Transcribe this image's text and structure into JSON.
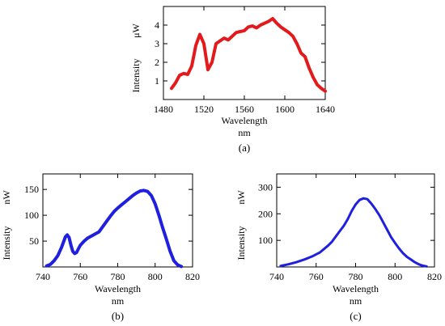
{
  "chart_data": [
    {
      "type": "line",
      "panel_label": "(a)",
      "xlabel": "Wavelength",
      "xunit": "nm",
      "ylabel": "Intensity",
      "yunit": "μW",
      "xlim": [
        1480,
        1640
      ],
      "ylim": [
        0,
        5
      ],
      "xticks": [
        1480,
        1520,
        1560,
        1600,
        1640
      ],
      "yticks": [
        1,
        2,
        3,
        4
      ],
      "grid": false,
      "color": "#e31a1c",
      "x": [
        1488,
        1492,
        1496,
        1500,
        1504,
        1508,
        1512,
        1516,
        1520,
        1524,
        1528,
        1532,
        1536,
        1540,
        1544,
        1548,
        1552,
        1556,
        1560,
        1564,
        1568,
        1572,
        1576,
        1580,
        1584,
        1588,
        1592,
        1596,
        1600,
        1604,
        1608,
        1612,
        1616,
        1620,
        1624,
        1628,
        1632,
        1636,
        1640
      ],
      "y": [
        0.6,
        0.9,
        1.3,
        1.4,
        1.35,
        1.8,
        2.9,
        3.5,
        3.0,
        1.6,
        2.0,
        3.0,
        3.15,
        3.3,
        3.2,
        3.4,
        3.6,
        3.65,
        3.7,
        3.9,
        3.95,
        3.85,
        4.0,
        4.1,
        4.2,
        4.35,
        4.1,
        3.9,
        3.75,
        3.6,
        3.4,
        3.0,
        2.5,
        2.3,
        1.7,
        1.2,
        0.8,
        0.6,
        0.45
      ]
    },
    {
      "type": "line",
      "panel_label": "(b)",
      "xlabel": "Wavelength",
      "xunit": "nm",
      "ylabel": "Intensity",
      "yunit": "nW",
      "xlim": [
        740,
        820
      ],
      "ylim": [
        0,
        180
      ],
      "xticks": [
        740,
        760,
        780,
        800,
        820
      ],
      "yticks": [
        50,
        100,
        150
      ],
      "grid": false,
      "color": "#1f1fdf",
      "x": [
        742,
        744,
        746,
        748,
        750,
        752,
        753,
        754,
        755,
        756,
        757,
        758,
        759,
        760,
        762,
        764,
        766,
        768,
        770,
        772,
        774,
        776,
        778,
        780,
        782,
        784,
        786,
        788,
        790,
        792,
        794,
        796,
        798,
        800,
        802,
        804,
        806,
        808,
        810,
        812,
        814
      ],
      "y": [
        2,
        5,
        12,
        22,
        38,
        58,
        62,
        57,
        42,
        30,
        26,
        28,
        35,
        42,
        50,
        56,
        60,
        64,
        68,
        78,
        88,
        98,
        107,
        114,
        120,
        126,
        132,
        138,
        143,
        147,
        148,
        146,
        138,
        122,
        100,
        76,
        54,
        30,
        12,
        4,
        1
      ]
    },
    {
      "type": "line",
      "panel_label": "(c)",
      "xlabel": "Wavelength",
      "xunit": "nm",
      "ylabel": "Intensity",
      "yunit": "nW",
      "xlim": [
        740,
        820
      ],
      "ylim": [
        0,
        350
      ],
      "xticks": [
        740,
        760,
        780,
        800,
        820
      ],
      "yticks": [
        100,
        200,
        300
      ],
      "grid": false,
      "color": "#1f1fdf",
      "x": [
        742,
        746,
        750,
        754,
        758,
        762,
        766,
        768,
        770,
        772,
        774,
        776,
        778,
        780,
        782,
        784,
        786,
        788,
        790,
        792,
        794,
        796,
        798,
        800,
        802,
        804,
        806,
        808,
        810,
        812,
        814,
        816
      ],
      "y": [
        4,
        10,
        18,
        28,
        40,
        55,
        80,
        95,
        115,
        135,
        155,
        180,
        210,
        235,
        252,
        258,
        255,
        238,
        218,
        195,
        168,
        140,
        112,
        90,
        70,
        52,
        38,
        28,
        18,
        10,
        5,
        2
      ]
    }
  ]
}
